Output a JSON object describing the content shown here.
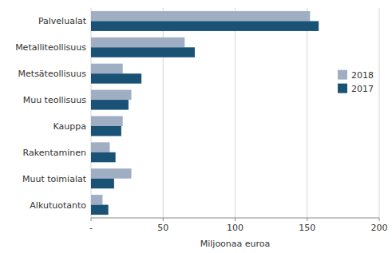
{
  "chart_data": {
    "type": "bar",
    "orientation": "horizontal",
    "categories": [
      "Alkutuotanto",
      "Muut toimialat",
      "Rakentaminen",
      "Kauppa",
      "Muu teollisuus",
      "Metsäteollisuus",
      "Metalliteollisuus",
      "Palvelualat"
    ],
    "series": [
      {
        "name": "2018",
        "color": "#a0aec4",
        "values": [
          8,
          28,
          13,
          22,
          28,
          22,
          65,
          152
        ]
      },
      {
        "name": "2017",
        "color": "#1a5276",
        "values": [
          12,
          16,
          17,
          21,
          26,
          35,
          72,
          158
        ]
      }
    ],
    "xlabel": "Miljoonaa euroa",
    "xlim": [
      0,
      200
    ],
    "xticks": [
      {
        "value": 0,
        "label": "-"
      },
      50,
      100,
      150,
      200
    ],
    "grid": true,
    "legend": "upper right"
  }
}
